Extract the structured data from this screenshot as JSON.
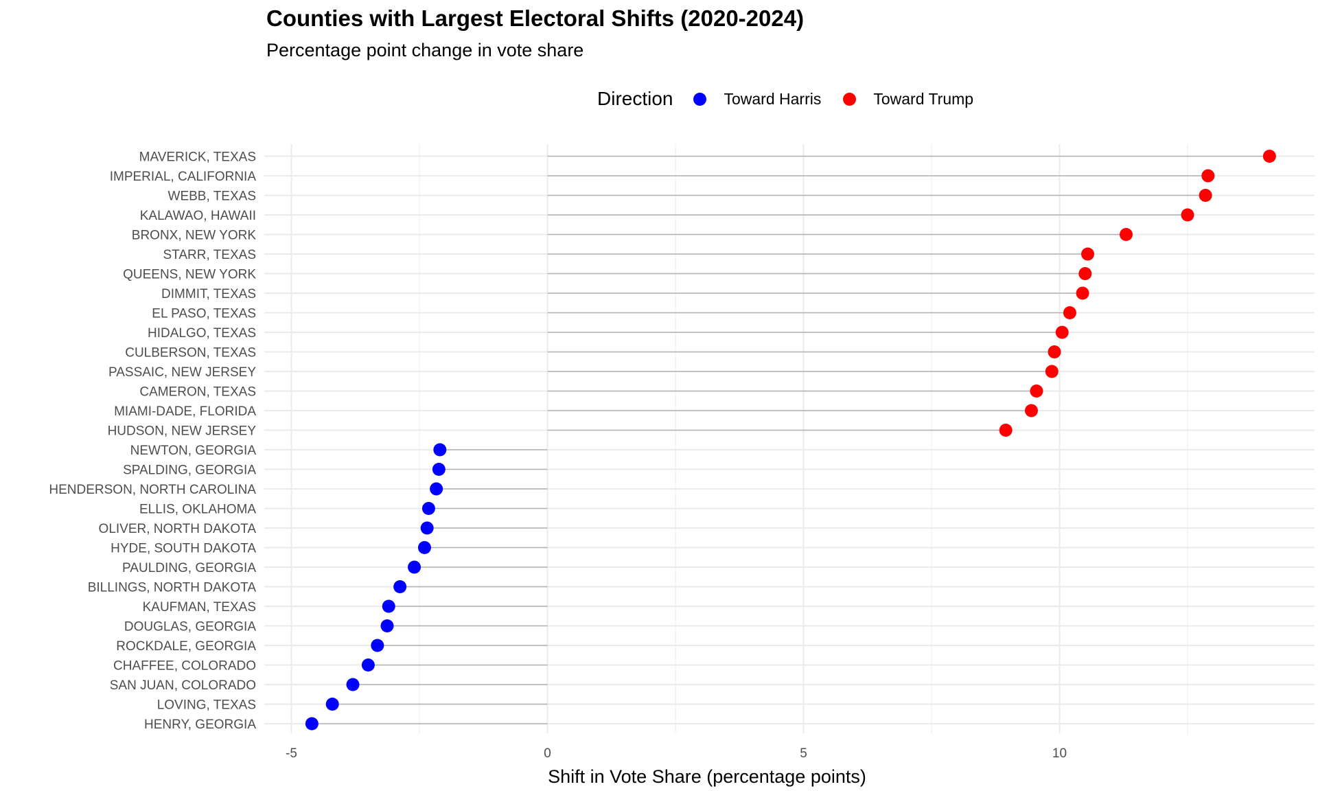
{
  "chart_data": {
    "type": "lollipop",
    "title": "Counties with Largest Electoral Shifts (2020-2024)",
    "subtitle": "Percentage point change in vote share",
    "xlabel": "Shift in Vote Share (percentage points)",
    "ylabel": "",
    "xlim": [
      -5.4,
      15.0
    ],
    "xticks": [
      -5,
      0,
      5,
      10
    ],
    "legend": {
      "title": "Direction",
      "position": "top",
      "items": [
        {
          "label": "Toward Harris",
          "color": "#0000ff"
        },
        {
          "label": "Toward Trump",
          "color": "#ff0000"
        }
      ]
    },
    "categories": [
      "MAVERICK, TEXAS",
      "IMPERIAL, CALIFORNIA",
      "WEBB, TEXAS",
      "KALAWAO, HAWAII",
      "BRONX, NEW YORK",
      "STARR, TEXAS",
      "QUEENS, NEW YORK",
      "DIMMIT, TEXAS",
      "EL PASO, TEXAS",
      "HIDALGO, TEXAS",
      "CULBERSON, TEXAS",
      "PASSAIC, NEW JERSEY",
      "CAMERON, TEXAS",
      "MIAMI-DADE, FLORIDA",
      "HUDSON, NEW JERSEY",
      "NEWTON, GEORGIA",
      "SPALDING, GEORGIA",
      "HENDERSON, NORTH CAROLINA",
      "ELLIS, OKLAHOMA",
      "OLIVER, NORTH DAKOTA",
      "HYDE, SOUTH DAKOTA",
      "PAULDING, GEORGIA",
      "BILLINGS, NORTH DAKOTA",
      "KAUFMAN, TEXAS",
      "DOUGLAS, GEORGIA",
      "ROCKDALE, GEORGIA",
      "CHAFFEE, COLORADO",
      "SAN JUAN, COLORADO",
      "LOVING, TEXAS",
      "HENRY, GEORGIA"
    ],
    "values": [
      14.1,
      12.9,
      12.85,
      12.5,
      11.3,
      10.55,
      10.5,
      10.45,
      10.2,
      10.05,
      9.9,
      9.85,
      9.55,
      9.45,
      8.95,
      -2.1,
      -2.12,
      -2.17,
      -2.32,
      -2.35,
      -2.4,
      -2.6,
      -2.88,
      -3.1,
      -3.13,
      -3.32,
      -3.5,
      -3.8,
      -4.2,
      -4.6
    ],
    "directions": [
      "Toward Trump",
      "Toward Trump",
      "Toward Trump",
      "Toward Trump",
      "Toward Trump",
      "Toward Trump",
      "Toward Trump",
      "Toward Trump",
      "Toward Trump",
      "Toward Trump",
      "Toward Trump",
      "Toward Trump",
      "Toward Trump",
      "Toward Trump",
      "Toward Trump",
      "Toward Harris",
      "Toward Harris",
      "Toward Harris",
      "Toward Harris",
      "Toward Harris",
      "Toward Harris",
      "Toward Harris",
      "Toward Harris",
      "Toward Harris",
      "Toward Harris",
      "Toward Harris",
      "Toward Harris",
      "Toward Harris",
      "Toward Harris",
      "Toward Harris"
    ],
    "grid": true,
    "stem_color": "#b3b3b3",
    "grid_color": "#ebebeb"
  }
}
